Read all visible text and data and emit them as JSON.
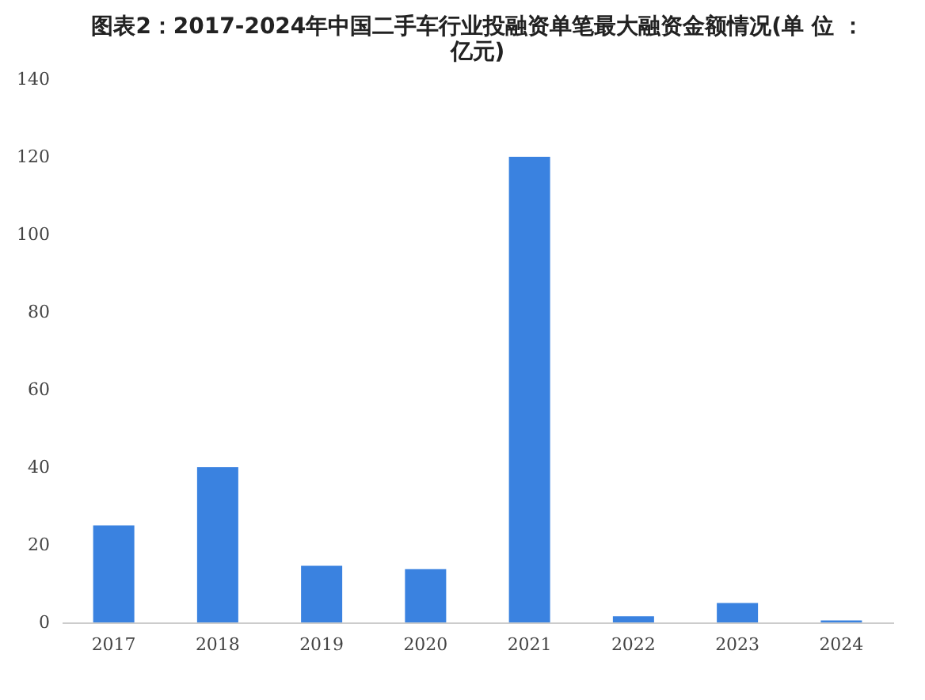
{
  "chart_data": {
    "type": "bar",
    "title": [
      "图表2：2017-2024年中国二手车行业投融资单笔最大融资金额情况(单 位 ：",
      "亿元)"
    ],
    "categories": [
      "2017",
      "2018",
      "2019",
      "2020",
      "2021",
      "2022",
      "2023",
      "2024"
    ],
    "values": [
      25,
      40,
      14.6,
      13.7,
      120,
      1.6,
      5,
      0.5
    ],
    "color": "#3a82e0",
    "ylim": [
      0,
      140
    ],
    "yticks": [
      0,
      20,
      40,
      60,
      80,
      100,
      120,
      140
    ],
    "grid": false
  }
}
